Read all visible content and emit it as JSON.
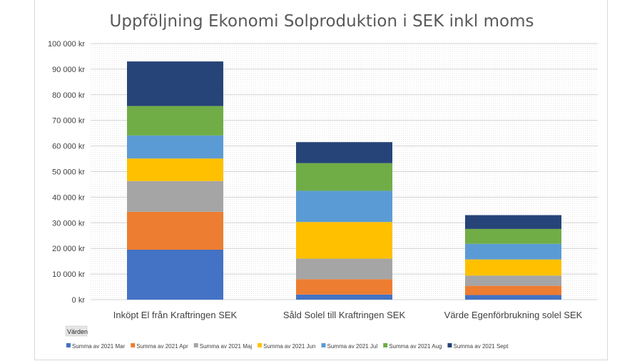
{
  "chart_data": {
    "type": "bar",
    "stacked": true,
    "title": "Uppföljning Ekonomi Solproduktion i SEK inkl moms",
    "field_button": "Värden",
    "categories": [
      "Inköpt El från Kraftringen SEK",
      "Såld Solel till Kraftringen SEK",
      "Värde Egenförbrukning solel SEK"
    ],
    "ylim": [
      0,
      100000
    ],
    "yticks": [
      0,
      10000,
      20000,
      30000,
      40000,
      50000,
      60000,
      70000,
      80000,
      90000,
      100000
    ],
    "ytick_labels": [
      "0 kr",
      "10 000 kr",
      "20 000 kr",
      "30 000 kr",
      "40 000 kr",
      "50 000 kr",
      "60 000 kr",
      "70 000 kr",
      "80 000 kr",
      "90 000 kr",
      "100 000 kr"
    ],
    "grid": true,
    "legend_position": "bottom",
    "series": [
      {
        "name": "Summa av 2021 Mar",
        "color": "#4472C4",
        "values": [
          19500,
          2000,
          1800
        ]
      },
      {
        "name": "Summa av 2021 Apr",
        "color": "#ED7D31",
        "values": [
          14800,
          6000,
          3600
        ]
      },
      {
        "name": "Summa av 2021 Maj",
        "color": "#A5A5A5",
        "values": [
          12000,
          8000,
          4000
        ]
      },
      {
        "name": "Summa av 2021 Jun",
        "color": "#FFC000",
        "values": [
          8800,
          14300,
          6300
        ]
      },
      {
        "name": "Summa av 2021 Jul",
        "color": "#5B9BD5",
        "values": [
          9000,
          12200,
          6100
        ]
      },
      {
        "name": "Summa av 2021 Aug",
        "color": "#70AD47",
        "values": [
          11500,
          10800,
          5800
        ]
      },
      {
        "name": "Summa av 2021 Sept",
        "color": "#264478",
        "values": [
          17400,
          8200,
          5400
        ]
      }
    ]
  }
}
